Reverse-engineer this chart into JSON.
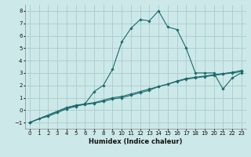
{
  "xlabel": "Humidex (Indice chaleur)",
  "xlim": [
    -0.5,
    23.5
  ],
  "ylim": [
    -1.5,
    8.5
  ],
  "xticks": [
    0,
    1,
    2,
    3,
    4,
    5,
    6,
    7,
    8,
    9,
    10,
    11,
    12,
    13,
    14,
    15,
    16,
    17,
    18,
    19,
    20,
    21,
    22,
    23
  ],
  "yticks": [
    -1,
    0,
    1,
    2,
    3,
    4,
    5,
    6,
    7,
    8
  ],
  "background_color": "#cde8e8",
  "grid_color": "#aacccc",
  "line_color": "#1a6b6b",
  "line1_x": [
    0,
    1,
    2,
    3,
    4,
    5,
    6,
    7,
    8,
    9,
    10,
    11,
    12,
    13,
    14,
    15,
    16,
    17,
    18,
    19,
    20,
    21,
    22,
    23
  ],
  "line1_y": [
    -1,
    -0.7,
    -0.5,
    -0.2,
    0.1,
    0.3,
    0.5,
    1.5,
    2.0,
    3.3,
    5.5,
    6.6,
    7.3,
    7.2,
    8.0,
    6.7,
    6.5,
    5.0,
    3.0,
    3.0,
    3.0,
    1.7,
    2.6,
    3.0
  ],
  "line2_x": [
    0,
    4,
    5,
    6,
    7,
    8,
    9,
    10,
    11,
    12,
    13,
    14,
    15,
    16,
    17,
    18,
    19,
    20,
    21,
    22,
    23
  ],
  "line2_y": [
    -1,
    0.2,
    0.4,
    0.5,
    0.6,
    0.8,
    1.0,
    1.1,
    1.3,
    1.5,
    1.7,
    1.9,
    2.1,
    2.3,
    2.5,
    2.6,
    2.7,
    2.8,
    2.9,
    3.0,
    3.1
  ],
  "line3_x": [
    0,
    4,
    5,
    6,
    7,
    8,
    9,
    10,
    11,
    12,
    13,
    14,
    15,
    16,
    17,
    18,
    19,
    20,
    21,
    22,
    23
  ],
  "line3_y": [
    -1,
    0.2,
    0.35,
    0.45,
    0.55,
    0.7,
    0.9,
    1.0,
    1.2,
    1.4,
    1.6,
    1.9,
    2.1,
    2.35,
    2.55,
    2.65,
    2.75,
    2.85,
    2.95,
    3.05,
    3.2
  ]
}
